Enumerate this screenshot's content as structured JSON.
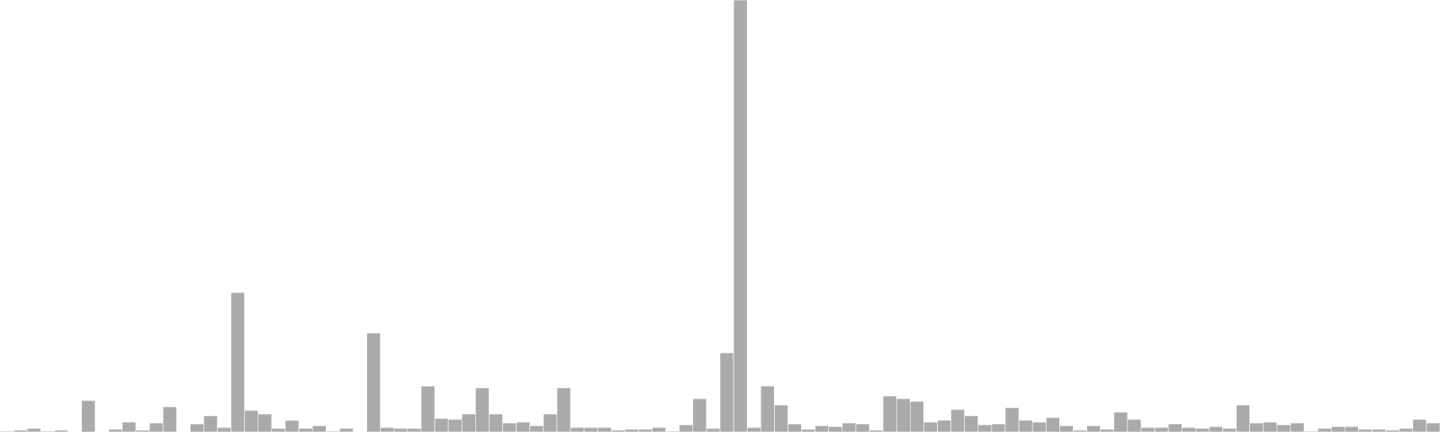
{
  "chart_data": {
    "type": "bar",
    "title": "",
    "xlabel": "",
    "ylabel": "",
    "grid": false,
    "legend": "none",
    "bar_color": "#aaaaaa",
    "ylim": [
      0,
      480
    ],
    "values": [
      1,
      2,
      4,
      1,
      2,
      0,
      35,
      0,
      3,
      11,
      2,
      10,
      28,
      0,
      9,
      18,
      5,
      155,
      24,
      20,
      4,
      13,
      4,
      7,
      1,
      4,
      0,
      110,
      5,
      4,
      4,
      51,
      15,
      14,
      20,
      49,
      20,
      10,
      11,
      7,
      20,
      49,
      5,
      5,
      5,
      2,
      3,
      3,
      5,
      1,
      8,
      37,
      4,
      88,
      480,
      5,
      51,
      30,
      9,
      3,
      7,
      6,
      10,
      9,
      2,
      40,
      37,
      34,
      11,
      13,
      25,
      18,
      8,
      9,
      27,
      13,
      11,
      16,
      7,
      2,
      7,
      3,
      22,
      14,
      5,
      5,
      9,
      5,
      4,
      6,
      4,
      30,
      10,
      11,
      8,
      10,
      1,
      4,
      6,
      6,
      3,
      3,
      2,
      4,
      14,
      10
    ]
  }
}
